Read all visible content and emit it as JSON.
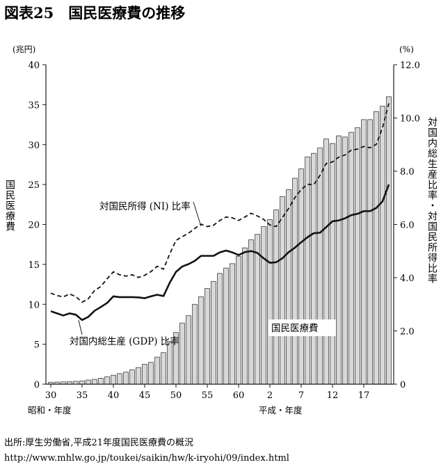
{
  "figure": {
    "title": "図表25　国民医療費の推移",
    "source_line1": "出所:厚生労働省,平成21年度国民医療費の概況",
    "source_line2": "http://www.mhlw.go.jp/toukei/saikin/hw/k-iryohi/09/index.html"
  },
  "chart_data": {
    "type": "bar",
    "ylabel_left": "国民医療費",
    "ylabel_right": "対国内総生産比率・対国民所得比率",
    "left_unit": "(兆円)",
    "right_unit": "(%)",
    "ylim_left": [
      0,
      40
    ],
    "ylim_right": [
      0,
      12.0
    ],
    "yticks_left": [
      "0",
      "5",
      "10",
      "15",
      "20",
      "25",
      "30",
      "35",
      "40"
    ],
    "yticks_right": [
      "0",
      "2.0",
      "4.0",
      "6.0",
      "8.0",
      "10.0",
      "12.0"
    ],
    "era_labels": [
      "昭和・年度",
      "平成・年度"
    ],
    "x_ticks": [
      {
        "label": "30",
        "year": 1955
      },
      {
        "label": "35",
        "year": 1960
      },
      {
        "label": "40",
        "year": 1965
      },
      {
        "label": "45",
        "year": 1970
      },
      {
        "label": "50",
        "year": 1975
      },
      {
        "label": "55",
        "year": 1980
      },
      {
        "label": "60",
        "year": 1985
      },
      {
        "label": "2",
        "year": 1990
      },
      {
        "label": "7",
        "year": 1995
      },
      {
        "label": "12",
        "year": 2000
      },
      {
        "label": "17",
        "year": 2005
      }
    ],
    "years": [
      1955,
      1956,
      1957,
      1958,
      1959,
      1960,
      1961,
      1962,
      1963,
      1964,
      1965,
      1966,
      1967,
      1968,
      1969,
      1970,
      1971,
      1972,
      1973,
      1974,
      1975,
      1976,
      1977,
      1978,
      1979,
      1980,
      1981,
      1982,
      1983,
      1984,
      1985,
      1986,
      1987,
      1988,
      1989,
      1990,
      1991,
      1992,
      1993,
      1994,
      1995,
      1996,
      1997,
      1998,
      1999,
      2000,
      2001,
      2002,
      2003,
      2004,
      2005,
      2006,
      2007,
      2008,
      2009
    ],
    "series": [
      {
        "name": "国民医療費",
        "type": "bar",
        "axis": "left",
        "values": [
          0.24,
          0.26,
          0.29,
          0.32,
          0.36,
          0.41,
          0.52,
          0.61,
          0.75,
          0.94,
          1.12,
          1.32,
          1.51,
          1.81,
          2.08,
          2.5,
          2.73,
          3.39,
          3.95,
          5.38,
          6.48,
          7.66,
          8.57,
          10.0,
          10.95,
          11.98,
          12.87,
          13.87,
          14.54,
          15.09,
          16.02,
          17.07,
          18.08,
          18.76,
          19.73,
          20.61,
          21.83,
          23.48,
          24.36,
          25.79,
          26.96,
          28.45,
          28.91,
          29.58,
          30.7,
          30.14,
          31.1,
          30.95,
          31.54,
          32.11,
          33.13,
          33.13,
          34.14,
          34.81,
          36.0
        ]
      },
      {
        "name": "対国民所得 (NI) 比率",
        "type": "line",
        "axis": "right",
        "style": "dashed",
        "values": [
          3.42,
          3.33,
          3.28,
          3.39,
          3.29,
          3.08,
          3.21,
          3.52,
          3.67,
          3.96,
          4.22,
          4.11,
          4.06,
          4.11,
          4.01,
          4.09,
          4.23,
          4.43,
          4.32,
          4.89,
          5.4,
          5.54,
          5.67,
          5.85,
          6.01,
          5.92,
          5.97,
          6.15,
          6.28,
          6.25,
          6.15,
          6.28,
          6.42,
          6.32,
          6.19,
          5.98,
          5.92,
          6.26,
          6.6,
          7.01,
          7.31,
          7.51,
          7.49,
          7.84,
          8.29,
          8.35,
          8.53,
          8.61,
          8.79,
          8.83,
          8.93,
          8.88,
          9.01,
          9.64,
          10.55
        ]
      },
      {
        "name": "対国内総生産 (GDP) 比率",
        "type": "line",
        "axis": "right",
        "style": "solid",
        "values": [
          2.74,
          2.66,
          2.58,
          2.66,
          2.61,
          2.41,
          2.53,
          2.76,
          2.9,
          3.05,
          3.3,
          3.27,
          3.27,
          3.27,
          3.26,
          3.23,
          3.3,
          3.36,
          3.31,
          3.81,
          4.22,
          4.42,
          4.51,
          4.63,
          4.82,
          4.82,
          4.82,
          4.95,
          5.02,
          4.95,
          4.85,
          4.96,
          5.0,
          4.93,
          4.73,
          4.56,
          4.58,
          4.73,
          4.96,
          5.13,
          5.33,
          5.52,
          5.67,
          5.69,
          5.9,
          6.12,
          6.15,
          6.23,
          6.35,
          6.4,
          6.5,
          6.5,
          6.62,
          6.87,
          7.5
        ]
      }
    ],
    "annotations": {
      "ni": "対国民所得 (NI) 比率",
      "gdp": "対国内総生産 (GDP) 比率",
      "bars": "国民医療費"
    },
    "grid": false,
    "legend": "none"
  }
}
